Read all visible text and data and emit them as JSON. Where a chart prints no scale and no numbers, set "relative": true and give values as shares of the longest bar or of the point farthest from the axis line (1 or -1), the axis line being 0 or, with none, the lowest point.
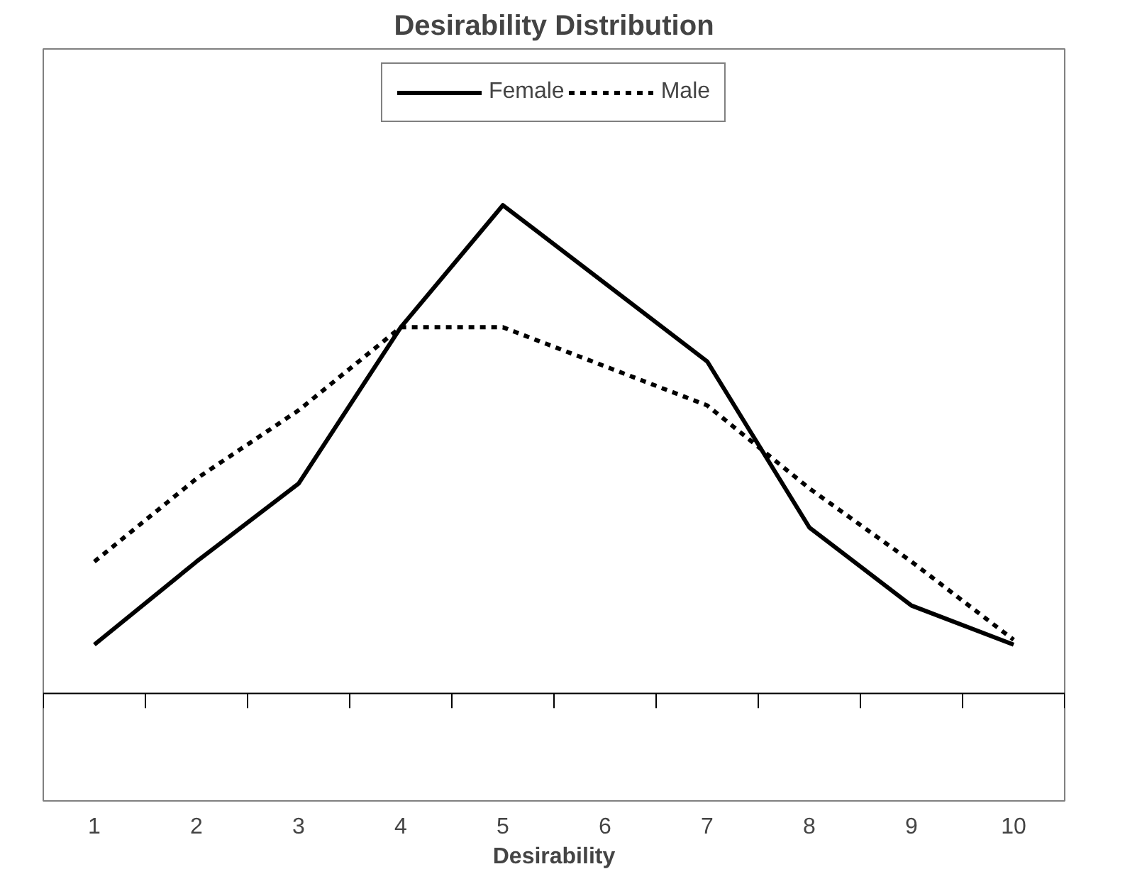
{
  "chart_data": {
    "type": "line",
    "title": "Desirability Distribution",
    "xlabel": "Desirability",
    "relative": true,
    "categories": [
      "1",
      "2",
      "3",
      "4",
      "5",
      "6",
      "7",
      "8",
      "9",
      "10"
    ],
    "series": [
      {
        "name": "Female",
        "color": "#000000",
        "line_style": "solid",
        "values": [
          0.1,
          0.27,
          0.43,
          0.75,
          1,
          0.84,
          0.68,
          0.34,
          0.18,
          0.1
        ]
      },
      {
        "name": "Male",
        "color": "#000000",
        "line_style": "dashed",
        "values": [
          0.27,
          0.44,
          0.58,
          0.75,
          0.75,
          0.67,
          0.59,
          0.42,
          0.27,
          0.11
        ]
      }
    ],
    "legend": "top",
    "grid": false,
    "marker": "none"
  }
}
